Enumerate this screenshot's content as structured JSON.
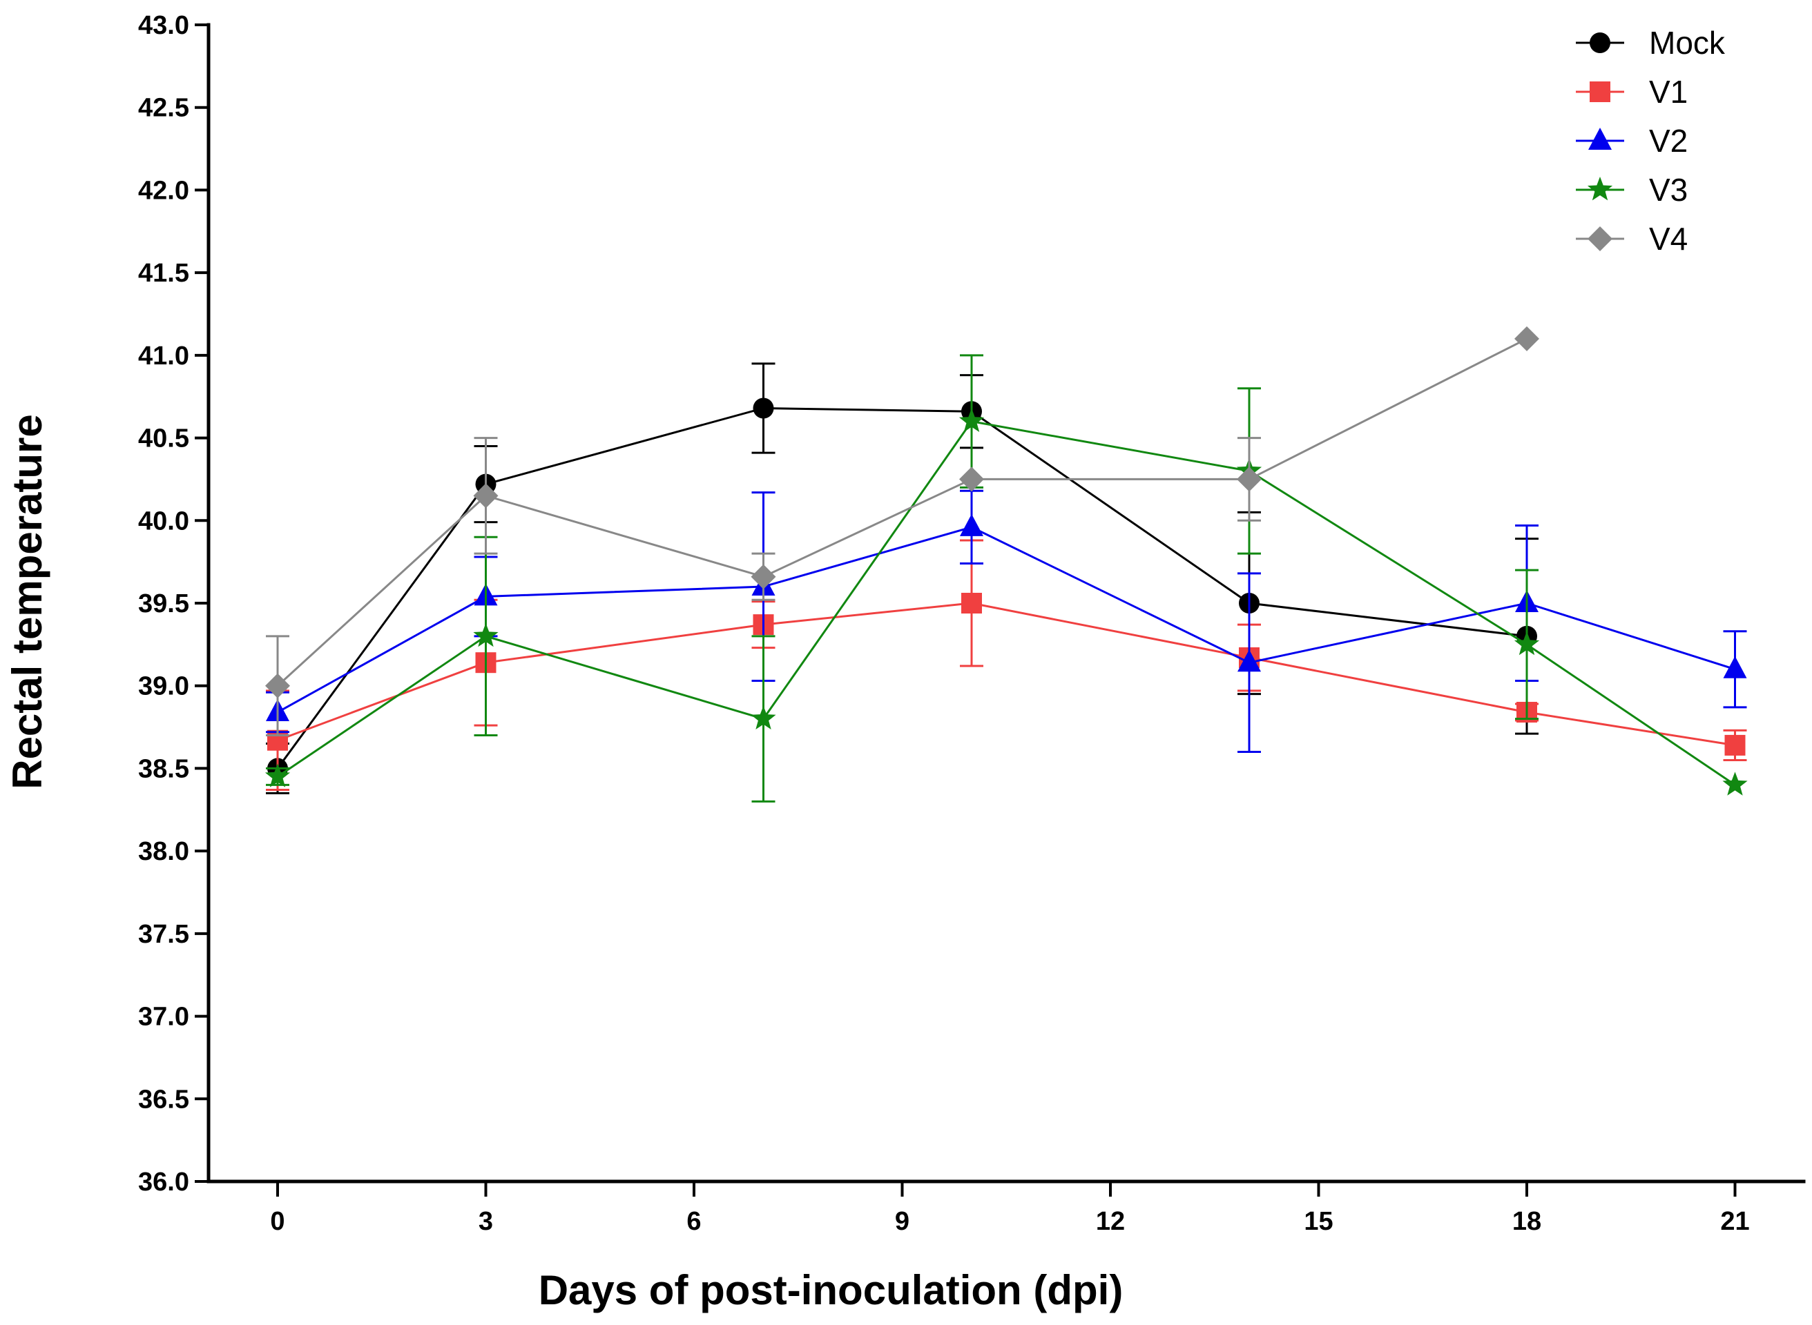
{
  "chart_data": {
    "type": "line",
    "title": "",
    "xlabel": "Days of post-inoculation (dpi)",
    "ylabel": "Rectal temperature",
    "xlim": [
      -1,
      22
    ],
    "ylim": [
      36.0,
      43.0
    ],
    "xticks": [
      0,
      3,
      6,
      9,
      12,
      15,
      18,
      21
    ],
    "xtick_labels": [
      "0",
      "3",
      "6",
      "9",
      "12",
      "15",
      "18",
      "21"
    ],
    "yticks": [
      36.0,
      36.5,
      37.0,
      37.5,
      38.0,
      38.5,
      39.0,
      39.5,
      40.0,
      40.5,
      41.0,
      41.5,
      42.0,
      42.5,
      43.0
    ],
    "ytick_labels": [
      "36.0",
      "36.5",
      "37.0",
      "37.5",
      "38.0",
      "38.5",
      "39.0",
      "39.5",
      "40.0",
      "40.5",
      "41.0",
      "41.5",
      "42.0",
      "42.5",
      "43.0"
    ],
    "grid": false,
    "legend_position": "top-right",
    "series": [
      {
        "name": "Mock",
        "color": "#000000",
        "marker": "circle",
        "x": [
          0,
          3,
          7,
          10,
          14,
          18
        ],
        "y": [
          38.5,
          40.22,
          40.68,
          40.66,
          39.5,
          39.3
        ],
        "err": [
          0.15,
          0.23,
          0.27,
          0.22,
          0.55,
          0.59
        ]
      },
      {
        "name": "V1",
        "color": "#f04040",
        "marker": "square",
        "x": [
          0,
          3,
          7,
          10,
          14,
          18,
          21
        ],
        "y": [
          38.67,
          39.14,
          39.37,
          39.5,
          39.17,
          38.84,
          38.64
        ],
        "err": [
          0.3,
          0.38,
          0.14,
          0.38,
          0.2,
          0.05,
          0.09
        ]
      },
      {
        "name": "V2",
        "color": "#0000ee",
        "marker": "triangle",
        "x": [
          0,
          3,
          7,
          10,
          14,
          18,
          21
        ],
        "y": [
          38.84,
          39.54,
          39.6,
          39.96,
          39.14,
          39.5,
          39.1
        ],
        "err": [
          0.12,
          0.24,
          0.57,
          0.22,
          0.54,
          0.47,
          0.23
        ]
      },
      {
        "name": "V3",
        "color": "#118811",
        "marker": "star",
        "x": [
          0,
          3,
          7,
          10,
          14,
          18,
          21
        ],
        "y": [
          38.45,
          39.3,
          38.8,
          40.6,
          40.3,
          39.25,
          38.4
        ],
        "err": [
          0.05,
          0.6,
          0.5,
          0.4,
          0.5,
          0.45,
          0.0
        ]
      },
      {
        "name": "V4",
        "color": "#888888",
        "marker": "diamond",
        "x": [
          0,
          3,
          7,
          10,
          14,
          18
        ],
        "y": [
          39.0,
          40.15,
          39.66,
          40.25,
          40.25,
          41.1
        ],
        "err": [
          0.3,
          0.35,
          0.14,
          0.0,
          0.25,
          0.0
        ]
      }
    ]
  }
}
